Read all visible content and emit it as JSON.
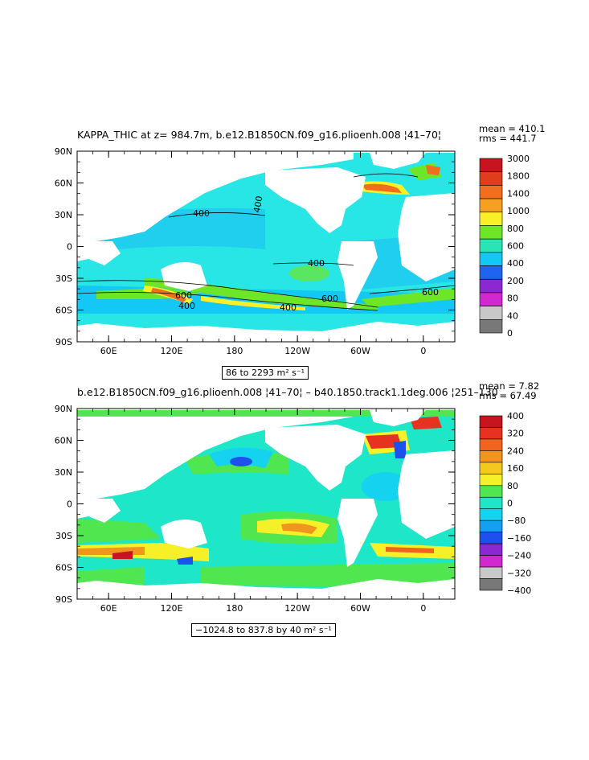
{
  "top": {
    "title": "KAPPA_THIC at z= 984.7m, b.e12.B1850CN.f09_g16.plioenh.008 ¦41–70¦",
    "mean": "mean = 410.1",
    "rms": "rms = 441.7",
    "range": "86 to 2293 m² s⁻¹",
    "colorbar_labels": [
      "3000",
      "1800",
      "1400",
      "1000",
      "800",
      "600",
      "400",
      "200",
      "80",
      "40",
      "0"
    ],
    "colorbar_colors": [
      "#c8141e",
      "#e23c1e",
      "#f06e1e",
      "#f5a021",
      "#faf028",
      "#6ee628",
      "#28e6b4",
      "#14c8f5",
      "#1e64f0",
      "#8c28d2",
      "#d228d2",
      "#c8c8c8",
      "#787878"
    ],
    "contour_labels": [
      "400",
      "400",
      "400",
      "600",
      "600",
      "600",
      "400",
      "400"
    ]
  },
  "bottom": {
    "title": "b.e12.B1850CN.f09_g16.plioenh.008 ¦41–70¦ – b40.1850.track1.1deg.006 ¦251–130",
    "mean": "mean = 7.82",
    "rms": "rms = 67.49",
    "range": "−1024.8 to 837.8 by 40 m² s⁻¹",
    "colorbar_labels": [
      "400",
      "320",
      "240",
      "160",
      "80",
      "0",
      "−80",
      "−160",
      "−240",
      "−320",
      "−400"
    ],
    "colorbar_colors": [
      "#c8141e",
      "#e6321e",
      "#f0641e",
      "#f0961e",
      "#f5c81e",
      "#f5f028",
      "#50e650",
      "#1ee6c8",
      "#14d2f0",
      "#14a0f0",
      "#1e50f0",
      "#8c28d2",
      "#d228d2",
      "#c8c8c8",
      "#787878"
    ]
  },
  "axes": {
    "lat_labels": [
      "90N",
      "60N",
      "30N",
      "0",
      "30S",
      "60S",
      "90S"
    ],
    "lon_labels": [
      "60E",
      "120E",
      "180",
      "120W",
      "60W",
      "0"
    ]
  }
}
